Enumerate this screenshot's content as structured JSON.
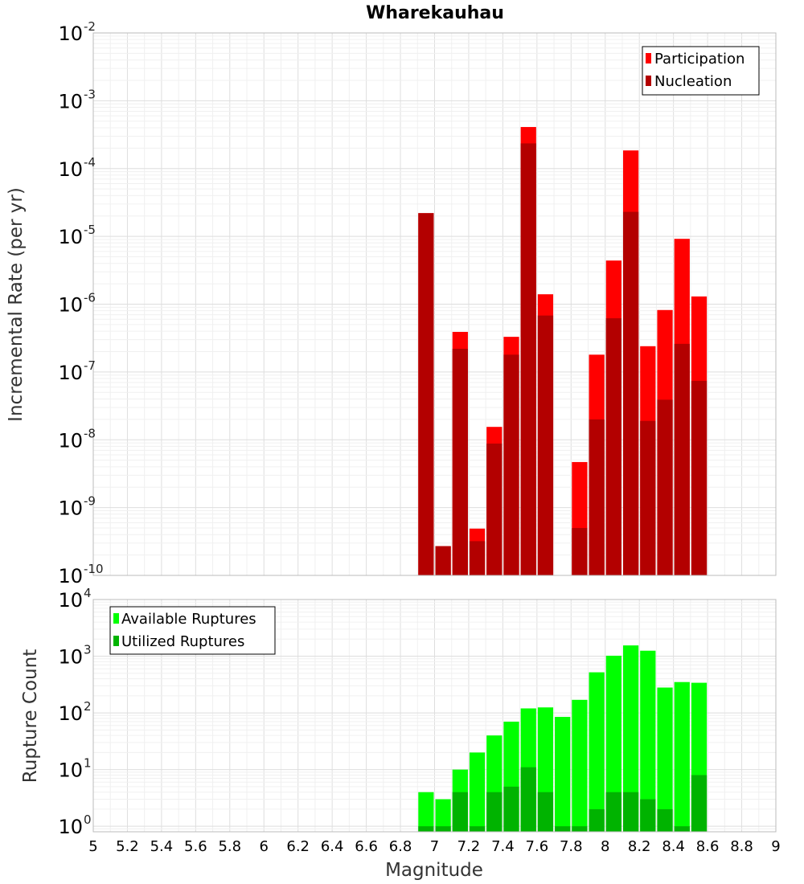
{
  "chart_data": [
    {
      "type": "bar",
      "title": "Wharekauhau",
      "xlabel": "",
      "ylabel": "Incremental Rate (per yr)",
      "y_scale": "log",
      "ylim": [
        1e-10,
        0.01
      ],
      "y_ticks": [
        {
          "base": "10",
          "exp": "-10"
        },
        {
          "base": "10",
          "exp": "-9"
        },
        {
          "base": "10",
          "exp": "-8"
        },
        {
          "base": "10",
          "exp": "-7"
        },
        {
          "base": "10",
          "exp": "-6"
        },
        {
          "base": "10",
          "exp": "-5"
        },
        {
          "base": "10",
          "exp": "-4"
        },
        {
          "base": "10",
          "exp": "-3"
        },
        {
          "base": "10",
          "exp": "-2"
        }
      ],
      "xlim": [
        5,
        9
      ],
      "bin_width": 0.1,
      "legend_position": "top-right",
      "grid": true,
      "x": [
        6.95,
        7.05,
        7.15,
        7.25,
        7.35,
        7.45,
        7.55,
        7.65,
        7.85,
        7.95,
        8.05,
        8.15,
        8.25,
        8.35,
        8.45,
        8.55
      ],
      "series": [
        {
          "name": "Participation",
          "color": "#ff0000",
          "values": [
            2.2e-05,
            2.7e-10,
            3.9e-07,
            4.9e-10,
            1.55e-08,
            3.3e-07,
            0.00041,
            1.4e-06,
            4.7e-09,
            1.8e-07,
            4.4e-06,
            0.000185,
            2.4e-07,
            8.2e-07,
            9.2e-06,
            1.3e-06
          ]
        },
        {
          "name": "Nucleation",
          "color": "#b30000",
          "values": [
            2.2e-05,
            2.7e-10,
            2.2e-07,
            3.2e-10,
            8.8e-09,
            1.8e-07,
            0.000235,
            6.8e-07,
            5e-10,
            2e-08,
            6.2e-07,
            2.3e-05,
            1.9e-08,
            3.9e-08,
            2.6e-07,
            7.4e-08
          ]
        }
      ]
    },
    {
      "type": "bar",
      "title": "",
      "xlabel": "Magnitude",
      "ylabel": "Rupture Count",
      "y_scale": "log",
      "ylim": [
        0.8,
        10000
      ],
      "y_ticks": [
        {
          "base": "10",
          "exp": "0"
        },
        {
          "base": "10",
          "exp": "1"
        },
        {
          "base": "10",
          "exp": "2"
        },
        {
          "base": "10",
          "exp": "3"
        },
        {
          "base": "10",
          "exp": "4"
        }
      ],
      "xlim": [
        5,
        9
      ],
      "x_ticks": [
        "5",
        "5.2",
        "5.4",
        "5.6",
        "5.8",
        "6",
        "6.2",
        "6.4",
        "6.6",
        "6.8",
        "7",
        "7.2",
        "7.4",
        "7.6",
        "7.8",
        "8",
        "8.2",
        "8.4",
        "8.6",
        "8.8",
        "9"
      ],
      "bin_width": 0.1,
      "legend_position": "top-left",
      "grid": true,
      "x": [
        6.95,
        7.05,
        7.15,
        7.25,
        7.35,
        7.45,
        7.55,
        7.65,
        7.75,
        7.85,
        7.95,
        8.05,
        8.15,
        8.25,
        8.35,
        8.45,
        8.55
      ],
      "series": [
        {
          "name": "Available Ruptures",
          "color": "#00ff00",
          "values": [
            4,
            3,
            10,
            20,
            40,
            70,
            120,
            125,
            85,
            170,
            520,
            1020,
            1550,
            1250,
            280,
            350,
            340
          ]
        },
        {
          "name": "Utilized Ruptures",
          "color": "#00b300",
          "values": [
            1,
            1,
            4,
            1,
            4,
            5,
            11,
            4,
            1,
            1,
            2,
            4,
            4,
            3,
            2,
            1,
            8
          ]
        }
      ]
    }
  ]
}
